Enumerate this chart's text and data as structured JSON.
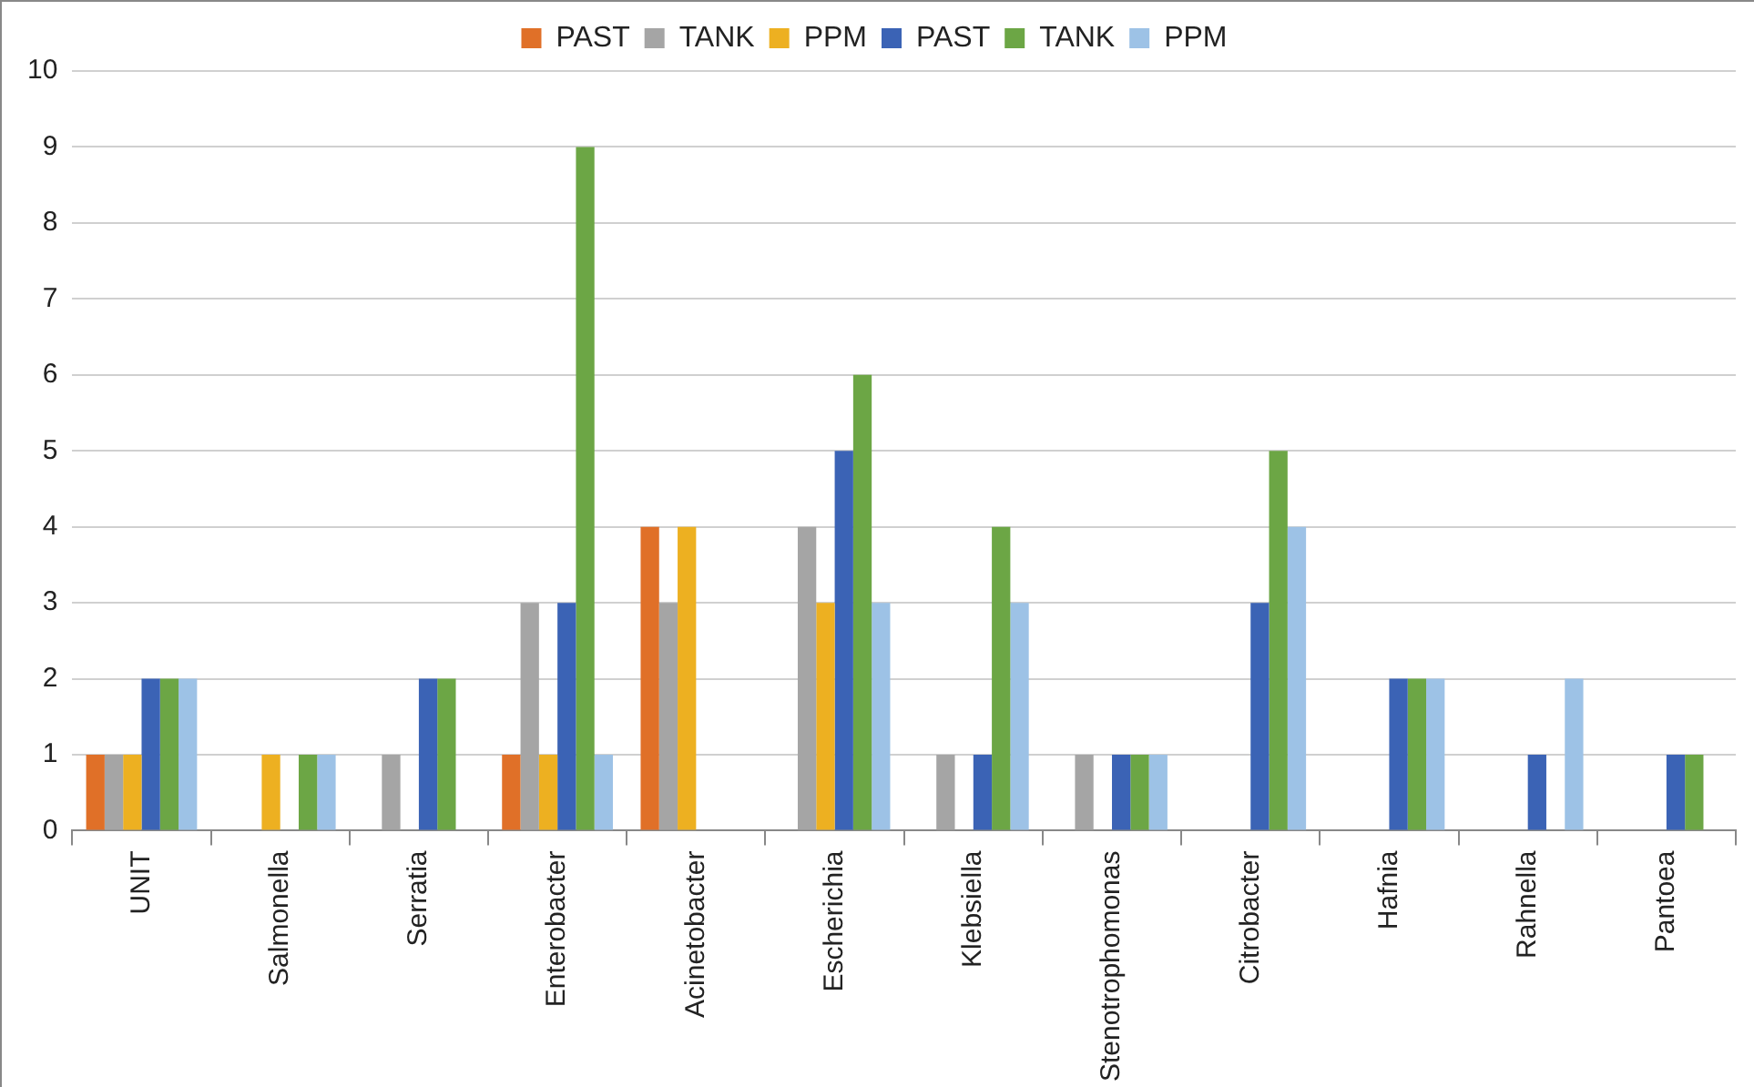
{
  "chart_data": {
    "type": "bar",
    "categories": [
      "UNIT",
      "Salmonella",
      "Serratia",
      "Enterobacter",
      "Acinetobacter",
      "Escherichia",
      "Klebsiella",
      "Stenotrophomonas",
      "Citrobacter",
      "Hafnia",
      "Rahnella",
      "Pantoea"
    ],
    "series": [
      {
        "name": "PAST",
        "color": "#e07028",
        "values": [
          1,
          0,
          0,
          1,
          4,
          0,
          0,
          0,
          0,
          0,
          0,
          0
        ]
      },
      {
        "name": "TANK",
        "color": "#a5a5a5",
        "values": [
          1,
          0,
          1,
          3,
          3,
          4,
          1,
          1,
          0,
          0,
          0,
          0
        ]
      },
      {
        "name": "PPM",
        "color": "#edb021",
        "values": [
          1,
          1,
          0,
          1,
          4,
          3,
          0,
          0,
          0,
          0,
          0,
          0
        ]
      },
      {
        "name": "PAST",
        "color": "#3b63b5",
        "values": [
          2,
          0,
          2,
          3,
          0,
          5,
          1,
          1,
          3,
          2,
          1,
          1
        ]
      },
      {
        "name": "TANK",
        "color": "#6ca645",
        "values": [
          2,
          1,
          2,
          9,
          0,
          6,
          4,
          1,
          5,
          2,
          0,
          1
        ]
      },
      {
        "name": "PPM",
        "color": "#9dc2e6",
        "values": [
          2,
          1,
          0,
          1,
          0,
          3,
          3,
          1,
          4,
          2,
          2,
          0
        ]
      }
    ],
    "ylim": [
      0,
      10
    ],
    "yticks": [
      0,
      1,
      2,
      3,
      4,
      5,
      6,
      7,
      8,
      9,
      10
    ],
    "grid": "y",
    "legend": "top"
  }
}
